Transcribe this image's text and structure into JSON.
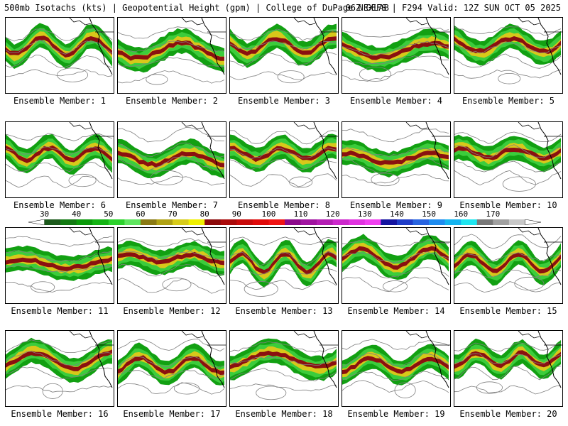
{
  "header": {
    "left": "500mb Isotachs (kts) | Geopotential Height (gpm) | College of DuPage NEXLAB",
    "right": "06Z GEFS | F294 Valid: 12Z SUN OCT 05 2025"
  },
  "label_prefix": "Ensemble Member:",
  "members": [
    1,
    2,
    3,
    4,
    5,
    6,
    7,
    8,
    9,
    10,
    11,
    12,
    13,
    14,
    15,
    16,
    17,
    18,
    19,
    20
  ],
  "colorbar": {
    "ticks": [
      "30",
      "40",
      "50",
      "60",
      "70",
      "80",
      "90",
      "100",
      "110",
      "120",
      "130",
      "140",
      "150",
      "160",
      "170"
    ],
    "colors": [
      "#1c5a1c",
      "#127a12",
      "#0a9a0a",
      "#14b414",
      "#2dd22d",
      "#5fe65f",
      "#8a7a14",
      "#b0a214",
      "#d8cc1a",
      "#f0f000",
      "#8c0a0a",
      "#aa0a0a",
      "#c80a0a",
      "#e00a0a",
      "#f01414",
      "#8c0a8c",
      "#a014a0",
      "#b41eb4",
      "#cc28cc",
      "#e032e0",
      "#f040f0",
      "#1414a0",
      "#1e3cc8",
      "#2864e0",
      "#1e8cf0",
      "#14b4f0",
      "#1ee6f0",
      "#787878",
      "#a0a0a0",
      "#c8c8c8"
    ],
    "wind_colors": {
      "light": "#12a012",
      "mid": "#3ccc3c",
      "yellow": "#d8c81a",
      "dark": "#8a1010"
    }
  }
}
